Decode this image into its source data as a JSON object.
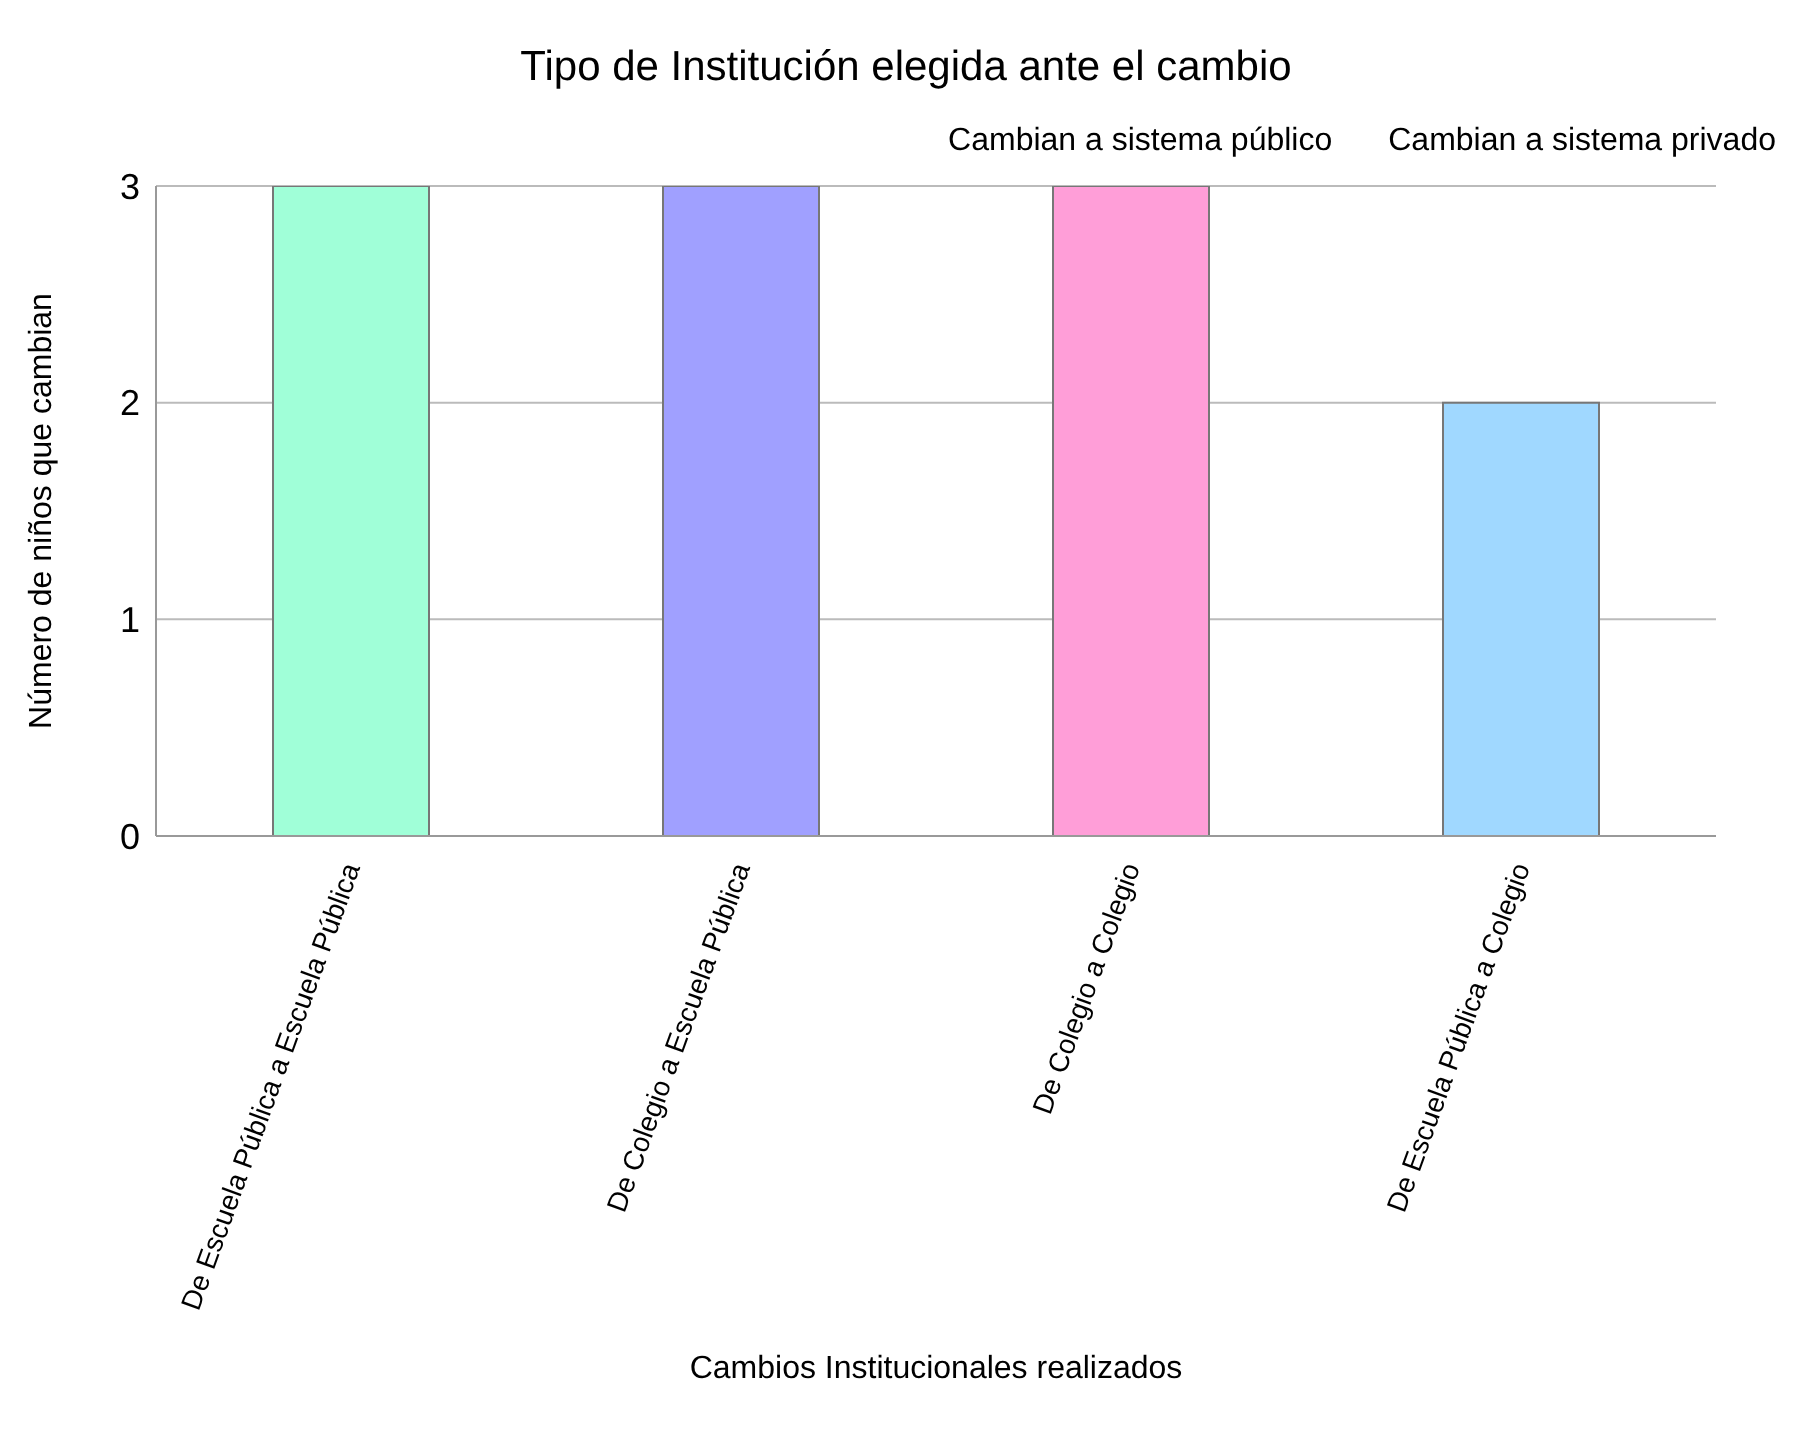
{
  "chart_data": {
    "type": "bar",
    "title": "Tipo de Institución elegida ante el cambio",
    "xlabel": "Cambios Institucionales realizados",
    "ylabel": "Número de niños que cambian",
    "annotations": [
      "Cambian a sistema público",
      "Cambian a sistema privado"
    ],
    "categories": [
      "De Escuela Pública a Escuela Pública",
      "De Colegio a Escuela Pública",
      "De Colegio a Colegio",
      "De Escuela Pública a Colegio"
    ],
    "values": [
      3,
      3,
      3,
      2
    ],
    "colors": [
      "#a0ffd8",
      "#a0a0ff",
      "#ff9ed8",
      "#a0d8ff"
    ],
    "ylim": [
      0,
      3
    ],
    "yticks": [
      0,
      1,
      2,
      3
    ],
    "grid": "y"
  }
}
